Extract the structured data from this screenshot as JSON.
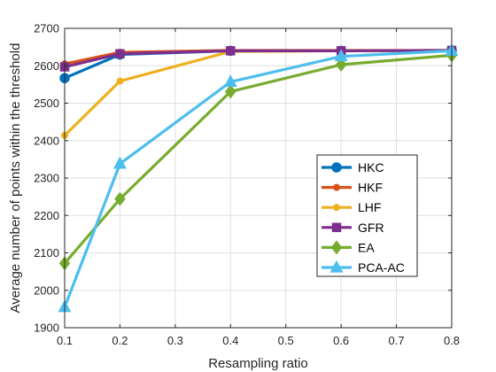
{
  "chart_data": {
    "type": "line",
    "xlabel": "Resampling ratio",
    "ylabel": "Average number of points within the threshold",
    "xlim": [
      0.1,
      0.8
    ],
    "ylim": [
      1900,
      2700
    ],
    "xticks": [
      "0.1",
      "0.2",
      "0.3",
      "0.4",
      "0.5",
      "0.6",
      "0.7",
      "0.8"
    ],
    "yticks": [
      "1900",
      "2000",
      "2100",
      "2200",
      "2300",
      "2400",
      "2500",
      "2600",
      "2700"
    ],
    "grid": true,
    "legend_position": "right",
    "x": [
      0.1,
      0.2,
      0.4,
      0.6,
      0.8
    ],
    "series": [
      {
        "name": "HKC",
        "color": "#0072BD",
        "marker": "circle",
        "values": [
          2567,
          2630,
          2640,
          2640,
          2641
        ]
      },
      {
        "name": "HKF",
        "color": "#D95319",
        "marker": "dot",
        "values": [
          2605,
          2636,
          2641,
          2641,
          2641
        ]
      },
      {
        "name": "LHF",
        "color": "#EDB120",
        "marker": "dot",
        "values": [
          2414,
          2559,
          2638,
          2640,
          2641
        ]
      },
      {
        "name": "GFR",
        "color": "#7E2F8E",
        "marker": "square",
        "values": [
          2597,
          2632,
          2640,
          2640,
          2641
        ]
      },
      {
        "name": "EA",
        "color": "#77AC30",
        "marker": "diamond",
        "values": [
          2072,
          2244,
          2531,
          2603,
          2628
        ]
      },
      {
        "name": "PCA-AC",
        "color": "#4DBEEE",
        "marker": "triangle",
        "values": [
          1955,
          2338,
          2557,
          2625,
          2640
        ]
      }
    ]
  }
}
